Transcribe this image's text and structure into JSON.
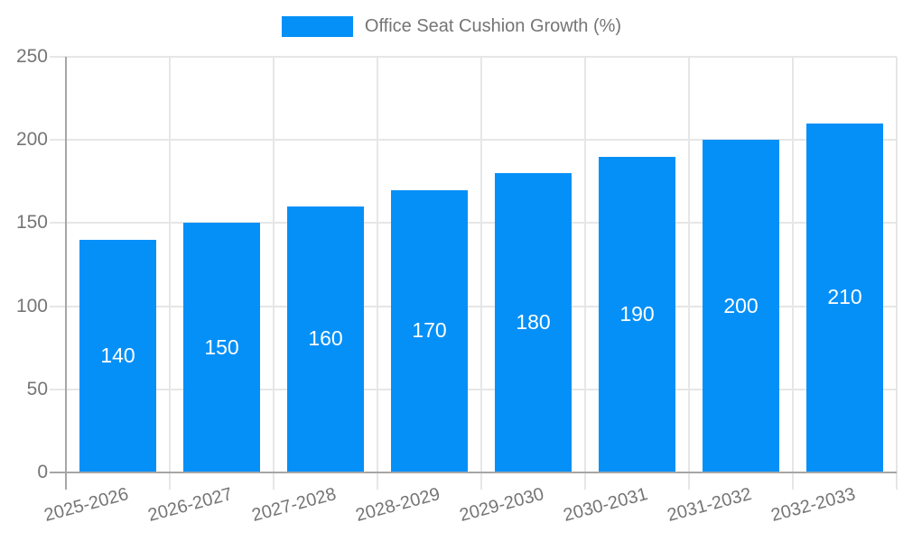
{
  "legend": {
    "label": "Office Seat Cushion Growth (%)"
  },
  "colors": {
    "bar": "#0590f8",
    "grid": "#e6e6e6",
    "axis": "#a6a6a6",
    "tick_text": "#757575",
    "bar_label": "#ffffff",
    "background": "#ffffff"
  },
  "chart_data": {
    "type": "bar",
    "title": "Office Seat Cushion Growth (%)",
    "categories": [
      "2025-2026",
      "2026-2027",
      "2027-2028",
      "2028-2029",
      "2029-2030",
      "2030-2031",
      "2031-2032",
      "2032-2033"
    ],
    "values": [
      140,
      150,
      160,
      170,
      180,
      190,
      200,
      210
    ],
    "xlabel": "",
    "ylabel": "",
    "ylim": [
      0,
      250
    ],
    "yticks": [
      0,
      50,
      100,
      150,
      200,
      250
    ],
    "grid": true,
    "legend_position": "top",
    "bar_labels_inside": true
  }
}
